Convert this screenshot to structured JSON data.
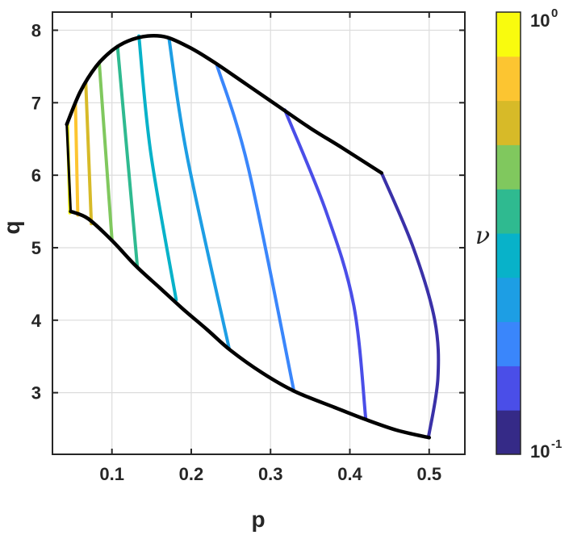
{
  "chart_data": {
    "type": "line",
    "xlabel": "p",
    "ylabel": "q",
    "xlim": [
      0.025,
      0.545
    ],
    "ylim": [
      2.15,
      8.25
    ],
    "xticks": [
      "0.1",
      "0.2",
      "0.3",
      "0.4",
      "0.5"
    ],
    "xtick_values": [
      0.1,
      0.2,
      0.3,
      0.4,
      0.5
    ],
    "yticks": [
      "3",
      "4",
      "5",
      "6",
      "7",
      "8"
    ],
    "ytick_values": [
      3,
      4,
      5,
      6,
      7,
      8
    ],
    "grid": true,
    "boundary": {
      "color": "#000000",
      "upper": [
        [
          0.043,
          6.7
        ],
        [
          0.06,
          7.15
        ],
        [
          0.08,
          7.5
        ],
        [
          0.1,
          7.72
        ],
        [
          0.12,
          7.85
        ],
        [
          0.145,
          7.92
        ],
        [
          0.17,
          7.9
        ],
        [
          0.2,
          7.75
        ],
        [
          0.23,
          7.55
        ],
        [
          0.27,
          7.25
        ],
        [
          0.31,
          6.95
        ],
        [
          0.35,
          6.65
        ],
        [
          0.39,
          6.38
        ],
        [
          0.44,
          6.03
        ]
      ],
      "lower": [
        [
          0.048,
          5.5
        ],
        [
          0.07,
          5.4
        ],
        [
          0.1,
          5.1
        ],
        [
          0.13,
          4.75
        ],
        [
          0.16,
          4.45
        ],
        [
          0.19,
          4.15
        ],
        [
          0.22,
          3.87
        ],
        [
          0.25,
          3.58
        ],
        [
          0.29,
          3.27
        ],
        [
          0.33,
          3.02
        ],
        [
          0.38,
          2.8
        ],
        [
          0.42,
          2.63
        ],
        [
          0.46,
          2.48
        ],
        [
          0.5,
          2.38
        ]
      ]
    },
    "series": [
      {
        "color": "#f9fb0e",
        "points": [
          [
            0.044,
            6.7
          ],
          [
            0.047,
            5.48
          ]
        ]
      },
      {
        "color": "#fcc531",
        "points": [
          [
            0.054,
            6.98
          ],
          [
            0.057,
            5.45
          ]
        ]
      },
      {
        "color": "#d7ba28",
        "points": [
          [
            0.067,
            7.27
          ],
          [
            0.074,
            5.33
          ]
        ]
      },
      {
        "color": "#80c85e",
        "points": [
          [
            0.084,
            7.55
          ],
          [
            0.1,
            5.12
          ]
        ]
      },
      {
        "color": "#2fba90",
        "points": [
          [
            0.107,
            7.78
          ],
          [
            0.132,
            4.75
          ]
        ]
      },
      {
        "color": "#08b2c9",
        "points": [
          [
            0.134,
            7.92
          ],
          [
            0.149,
            6.3
          ],
          [
            0.181,
            4.28
          ]
        ]
      },
      {
        "color": "#1d9ee4",
        "points": [
          [
            0.172,
            7.88
          ],
          [
            0.195,
            6.25
          ],
          [
            0.248,
            3.6
          ]
        ]
      },
      {
        "color": "#3a86fb",
        "points": [
          [
            0.232,
            7.53
          ],
          [
            0.272,
            6.1
          ],
          [
            0.329,
            3.05
          ]
        ]
      },
      {
        "color": "#4a4ee8",
        "points": [
          [
            0.318,
            6.9
          ],
          [
            0.37,
            5.5
          ],
          [
            0.405,
            4.2
          ],
          [
            0.42,
            2.64
          ]
        ]
      },
      {
        "color": "#3a31a8",
        "points": [
          [
            0.44,
            6.03
          ],
          [
            0.48,
            5.0
          ],
          [
            0.507,
            4.0
          ],
          [
            0.511,
            3.2
          ],
          [
            0.499,
            2.38
          ]
        ]
      }
    ],
    "colorbar": {
      "label": "ν",
      "scale": "log",
      "ticks": [
        "10",
        "10"
      ],
      "tick_exponents": [
        "0",
        "-1"
      ],
      "colors": [
        "#352a87",
        "#4a4ee8",
        "#3a86fb",
        "#1d9ee4",
        "#08b2c9",
        "#2fba90",
        "#80c85e",
        "#d7ba28",
        "#fcc531",
        "#f9fb0e"
      ]
    }
  }
}
